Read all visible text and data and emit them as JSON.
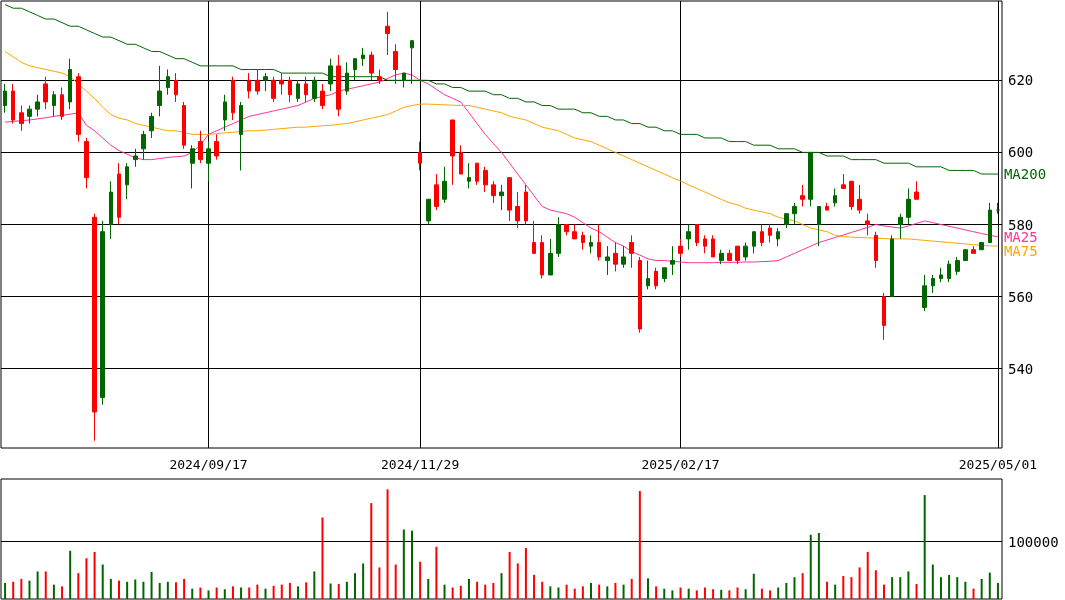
{
  "chart_data": [
    {
      "type": "candlestick",
      "categories": [
        null,
        null,
        null,
        null,
        null,
        null,
        null,
        null,
        null,
        null,
        null,
        null,
        null,
        null,
        null,
        null,
        null,
        null,
        null,
        null,
        null,
        null,
        null,
        null,
        null,
        "2024/09/17",
        null,
        null,
        null,
        null,
        null,
        null,
        null,
        null,
        null,
        null,
        null,
        null,
        null,
        null,
        null,
        null,
        null,
        null,
        null,
        null,
        null,
        null,
        null,
        null,
        null,
        "2024/11/29",
        null,
        null,
        null,
        null,
        null,
        null,
        null,
        null,
        null,
        null,
        null,
        null,
        null,
        null,
        null,
        null,
        null,
        null,
        null,
        null,
        null,
        null,
        null,
        null,
        null,
        null,
        null,
        null,
        null,
        null,
        null,
        "2025/02/17",
        null,
        null,
        null,
        null,
        null,
        null,
        null,
        null,
        null,
        null,
        null,
        null,
        null,
        null,
        null,
        null,
        null,
        null,
        null,
        null,
        null,
        null,
        null,
        null,
        null,
        null,
        null,
        null,
        null,
        null,
        null,
        null,
        null,
        null,
        null,
        null,
        null,
        null,
        "2025/05/01"
      ],
      "ohlc": [
        [
          613,
          619,
          611,
          617
        ],
        [
          617,
          619,
          608,
          609
        ],
        [
          611,
          613,
          606,
          608
        ],
        [
          610,
          613,
          608,
          612
        ],
        [
          612,
          616,
          610,
          614
        ],
        [
          619,
          621,
          612,
          614
        ],
        [
          613,
          617,
          610,
          616
        ],
        [
          616,
          618,
          609,
          610
        ],
        [
          614,
          626,
          612,
          623
        ],
        [
          621,
          622,
          603,
          605
        ],
        [
          603,
          604,
          590,
          593
        ],
        [
          582,
          583,
          520,
          528
        ],
        [
          532,
          581,
          530,
          578
        ],
        [
          580,
          592,
          576,
          589
        ],
        [
          594,
          597,
          580,
          582
        ],
        [
          591,
          597,
          587,
          596
        ],
        [
          598,
          601,
          596,
          599
        ],
        [
          601,
          606,
          598,
          605
        ],
        [
          606,
          611,
          604,
          610
        ],
        [
          613,
          624,
          610,
          617
        ],
        [
          618,
          623,
          616,
          621
        ],
        [
          620,
          622,
          614,
          616
        ],
        [
          613,
          614,
          601,
          602
        ],
        [
          597,
          602,
          590,
          601
        ],
        [
          603,
          606,
          597,
          598
        ],
        [
          597,
          603,
          592,
          601
        ],
        [
          603,
          605,
          598,
          599
        ],
        [
          609,
          616,
          606,
          614
        ],
        [
          620,
          621,
          609,
          611
        ],
        [
          605,
          614,
          595,
          613
        ],
        [
          620,
          622,
          615,
          617
        ],
        [
          620,
          623,
          616,
          617
        ],
        [
          620,
          622,
          617,
          621
        ],
        [
          620,
          621,
          614,
          615
        ],
        [
          620,
          622,
          616,
          619
        ],
        [
          620,
          621,
          614,
          616
        ],
        [
          615,
          620,
          614,
          619
        ],
        [
          619,
          621,
          614,
          616
        ],
        [
          615,
          621,
          614,
          620
        ],
        [
          617,
          619,
          612,
          613
        ],
        [
          619,
          626,
          617,
          624
        ],
        [
          624,
          627,
          610,
          612
        ],
        [
          617,
          625,
          616,
          622
        ],
        [
          623,
          626,
          620,
          626
        ],
        [
          626,
          629,
          624,
          627
        ],
        [
          627,
          628,
          620,
          622
        ],
        [
          621,
          623,
          619,
          620
        ],
        [
          635,
          639,
          627,
          633
        ],
        [
          628,
          630,
          619,
          623
        ],
        [
          620,
          622,
          618,
          622
        ],
        [
          629,
          631,
          619,
          631
        ],
        [
          600,
          603,
          595,
          597
        ],
        [
          581,
          587,
          580,
          587
        ],
        [
          591,
          594,
          584,
          585
        ],
        [
          587,
          596,
          586,
          592
        ],
        [
          609,
          609,
          591,
          599
        ],
        [
          600,
          602,
          594,
          594
        ],
        [
          592,
          597,
          590,
          593
        ],
        [
          597,
          597,
          591,
          592
        ],
        [
          595,
          596,
          589,
          591
        ],
        [
          591,
          592,
          586,
          588
        ],
        [
          588,
          591,
          584,
          589
        ],
        [
          593,
          593,
          581,
          584
        ],
        [
          585,
          589,
          579,
          581
        ],
        [
          589,
          591,
          580,
          581
        ],
        [
          575,
          581,
          572,
          572
        ],
        [
          575,
          577,
          565,
          566
        ],
        [
          566,
          576,
          566,
          572
        ],
        [
          572,
          582,
          571,
          580
        ],
        [
          580,
          580,
          577,
          578
        ],
        [
          578,
          580,
          576,
          576
        ],
        [
          577,
          578,
          573,
          575
        ],
        [
          574,
          577,
          572,
          575
        ],
        [
          575,
          580,
          570,
          571
        ],
        [
          570,
          574,
          566,
          571
        ],
        [
          572,
          575,
          567,
          569
        ],
        [
          569,
          574,
          568,
          571
        ],
        [
          575,
          577,
          568,
          572
        ],
        [
          570,
          571,
          550,
          551
        ],
        [
          563,
          570,
          562,
          565
        ],
        [
          567,
          568,
          562,
          563
        ],
        [
          565,
          568,
          564,
          568
        ],
        [
          569,
          574,
          566,
          570
        ],
        [
          574,
          576,
          571,
          572
        ],
        [
          576,
          580,
          573,
          578
        ],
        [
          580,
          580,
          574,
          575
        ],
        [
          576,
          577,
          572,
          574
        ],
        [
          576,
          577,
          571,
          571
        ],
        [
          570,
          573,
          569,
          572
        ],
        [
          572,
          573,
          570,
          570
        ],
        [
          574,
          574,
          569,
          570
        ],
        [
          571,
          575,
          570,
          574
        ],
        [
          574,
          578,
          572,
          578
        ],
        [
          578,
          580,
          574,
          575
        ],
        [
          579,
          580,
          575,
          577
        ],
        [
          576,
          579,
          574,
          578
        ],
        [
          580,
          583,
          579,
          583
        ],
        [
          583,
          586,
          580,
          585
        ],
        [
          588,
          591,
          585,
          587
        ],
        [
          587,
          600,
          585,
          600
        ],
        [
          580,
          585,
          574,
          585
        ],
        [
          585,
          586,
          584,
          584
        ],
        [
          586,
          590,
          585,
          588
        ],
        [
          591,
          594,
          590,
          590
        ],
        [
          592,
          592,
          584,
          585
        ],
        [
          587,
          591,
          583,
          584
        ],
        [
          581,
          583,
          577,
          580
        ],
        [
          577,
          578,
          568,
          570
        ],
        [
          560,
          561,
          548,
          552
        ],
        [
          560,
          577,
          560,
          576
        ],
        [
          580,
          583,
          576,
          582
        ],
        [
          582,
          590,
          580,
          587
        ],
        [
          589,
          592,
          587,
          587
        ],
        [
          557,
          566,
          556,
          563
        ],
        [
          563,
          566,
          561,
          565
        ],
        [
          565,
          568,
          564,
          566
        ],
        [
          565,
          570,
          564,
          569
        ],
        [
          567,
          571,
          566,
          570
        ],
        [
          570,
          573,
          570,
          573
        ],
        [
          573,
          574,
          572,
          572
        ],
        [
          573,
          575,
          573,
          575
        ],
        [
          575,
          586,
          575,
          584
        ],
        [
          584,
          586,
          583,
          584
        ]
      ],
      "colors": [
        "#006600",
        "#ff0000",
        "#ff0000",
        "#006600",
        "#006600",
        "#ff0000",
        "#006600",
        "#ff0000",
        "#006600",
        "#ff0000",
        "#ff0000",
        "#ff0000",
        "#006600",
        "#006600",
        "#ff0000",
        "#006600",
        "#006600",
        "#006600",
        "#006600",
        "#006600",
        "#006600",
        "#ff0000",
        "#ff0000",
        "#006600",
        "#ff0000",
        "#006600",
        "#ff0000",
        "#006600",
        "#ff0000",
        "#006600",
        "#ff0000",
        "#ff0000",
        "#006600",
        "#ff0000",
        "#ff0000",
        "#ff0000",
        "#006600",
        "#ff0000",
        "#006600",
        "#ff0000",
        "#006600",
        "#ff0000",
        "#006600",
        "#006600",
        "#006600",
        "#ff0000",
        "#ff0000",
        "#ff0000",
        "#ff0000",
        "#006600",
        "#006600",
        "#ff0000",
        "#006600",
        "#ff0000",
        "#006600",
        "#ff0000",
        "#ff0000",
        "#006600",
        "#ff0000",
        "#ff0000",
        "#ff0000",
        "#006600",
        "#ff0000",
        "#ff0000",
        "#ff0000",
        "#ff0000",
        "#ff0000",
        "#006600",
        "#006600",
        "#ff0000",
        "#ff0000",
        "#ff0000",
        "#006600",
        "#ff0000",
        "#006600",
        "#ff0000",
        "#006600",
        "#ff0000",
        "#ff0000",
        "#006600",
        "#ff0000",
        "#006600",
        "#006600",
        "#ff0000",
        "#006600",
        "#ff0000",
        "#ff0000",
        "#ff0000",
        "#006600",
        "#ff0000",
        "#ff0000",
        "#006600",
        "#006600",
        "#ff0000",
        "#ff0000",
        "#006600",
        "#006600",
        "#006600",
        "#ff0000",
        "#006600",
        "#006600",
        "#ff0000",
        "#006600",
        "#ff0000",
        "#ff0000",
        "#ff0000",
        "#ff0000",
        "#ff0000",
        "#ff0000",
        "#006600",
        "#006600",
        "#006600",
        "#ff0000",
        "#006600",
        "#006600",
        "#006600",
        "#006600",
        "#006600",
        "#006600",
        "#ff0000",
        "#006600",
        "#006600",
        "#006600"
      ],
      "series": [
        {
          "name": "MA25",
          "type": "line",
          "color": "#ff3399",
          "values": [
            608.4,
            608.6,
            608.8,
            609,
            609.3,
            609.6,
            610,
            610.3,
            610.6,
            611,
            607.5,
            606,
            604,
            602,
            600.5,
            599.5,
            598.5,
            598,
            598,
            598.3,
            598.6,
            598.8,
            599,
            600,
            602,
            605,
            606,
            607,
            608,
            609,
            610,
            610.5,
            611,
            611.5,
            612,
            612.5,
            613,
            614,
            615,
            615.5,
            616,
            617,
            617.5,
            618,
            618.5,
            619,
            619.5,
            620.5,
            621.5,
            622,
            621.5,
            620,
            619,
            617.5,
            616,
            615,
            614,
            611,
            608,
            605,
            602.5,
            600,
            597,
            594,
            591,
            588,
            585,
            584,
            583.5,
            583,
            582,
            580.5,
            579,
            578,
            576.5,
            575,
            574,
            572.5,
            571.5,
            570.5,
            570,
            570,
            569.8,
            569.6,
            569.4,
            569.4,
            569.4,
            569.4,
            569.5,
            569.5,
            569.5,
            569.6,
            569.6,
            569.7,
            569.8,
            570,
            571,
            572,
            573,
            574,
            575,
            575.7,
            576.4,
            577.1,
            577.8,
            578.5,
            579.2,
            580,
            579.6,
            579.3,
            579,
            579.6,
            580.3,
            581,
            580.5,
            580,
            579.5,
            579,
            578.5,
            578,
            577.5,
            577,
            576.6
          ]
        },
        {
          "name": "MA75",
          "type": "line",
          "color": "#ffa500",
          "values": [
            628,
            626.5,
            625,
            624,
            623.5,
            623,
            622.5,
            622,
            621,
            619,
            617,
            615,
            612.5,
            610.5,
            609.5,
            609,
            608,
            607.5,
            607,
            606.5,
            606,
            606,
            605.5,
            605,
            605,
            605,
            605.2,
            605.4,
            605.6,
            605.8,
            606,
            606,
            606.2,
            606.4,
            606.6,
            606.8,
            607,
            607,
            607.2,
            607.4,
            607.5,
            607.8,
            608,
            608.5,
            609,
            609.5,
            610,
            610.5,
            611.5,
            612.5,
            613,
            613.4,
            613.4,
            613.3,
            613.2,
            613.1,
            613,
            613,
            612.5,
            612,
            611.5,
            611,
            610,
            609.5,
            609,
            608,
            607,
            606.5,
            606,
            605,
            604,
            603.5,
            603,
            602,
            601,
            600,
            599,
            598,
            597,
            596,
            595,
            594,
            593,
            592,
            591,
            590,
            589,
            588,
            587,
            586,
            585.5,
            584.5,
            584,
            583.5,
            583,
            582,
            581.5,
            581,
            580,
            579,
            578.5,
            578,
            577,
            576.6,
            576.5,
            576.4,
            576.3,
            576.2,
            576.1,
            576,
            576,
            576,
            575.8,
            575.6,
            575.4,
            575.2,
            575,
            574.8,
            574.6,
            574.4,
            574.2,
            574.1,
            574
          ]
        },
        {
          "name": "MA200",
          "type": "line",
          "color": "#006600",
          "values": [
            641,
            640,
            640,
            639,
            638,
            637,
            637,
            636,
            635,
            635,
            634,
            633,
            632,
            632,
            631,
            630,
            630,
            629,
            628,
            628,
            627,
            626,
            626,
            625,
            624,
            624,
            624,
            624,
            624,
            623,
            623,
            623,
            623,
            623,
            622,
            622,
            622,
            622,
            622,
            622,
            621,
            621,
            621,
            621,
            621,
            621,
            621,
            620,
            620,
            620,
            620,
            620,
            620,
            619,
            619,
            618,
            618,
            617,
            617,
            617,
            616,
            616,
            615,
            615,
            614,
            614,
            613,
            613,
            612,
            612,
            612,
            611,
            611,
            610,
            610,
            609,
            609,
            608,
            608,
            607,
            607,
            606,
            606,
            605,
            605,
            605,
            604,
            604,
            604,
            603,
            603,
            603,
            602,
            602,
            602,
            601,
            601,
            601,
            600,
            600,
            600,
            599,
            599,
            599,
            598,
            598,
            598,
            598,
            597,
            597,
            597,
            597,
            596,
            596,
            596,
            596,
            595,
            595,
            595,
            595,
            594,
            594,
            594
          ]
        }
      ],
      "ylim": [
        518,
        642
      ],
      "yticks": [
        540,
        560,
        580,
        600,
        620
      ],
      "grid": true,
      "marker": "none",
      "line_style": "solid"
    },
    {
      "type": "bar",
      "categories": [
        null,
        null,
        null,
        null,
        null,
        null,
        null,
        null,
        null,
        null,
        null,
        null,
        null,
        null,
        null,
        null,
        null,
        null,
        null,
        null,
        null,
        null,
        null,
        null,
        null,
        null,
        null,
        null,
        null,
        null,
        null,
        null,
        null,
        null,
        null,
        null,
        null,
        null,
        null,
        null,
        null,
        null,
        null,
        null,
        null,
        null,
        null,
        null,
        null,
        null,
        null,
        null,
        null,
        null,
        null,
        null,
        null,
        null,
        null,
        null,
        null,
        null,
        null,
        null,
        null,
        null,
        null,
        null,
        null,
        null,
        null,
        null,
        null,
        null,
        null,
        null,
        null,
        null,
        null,
        null,
        null,
        null,
        null,
        null,
        null,
        null,
        null,
        null,
        null,
        null,
        null,
        null,
        null,
        null,
        null,
        null,
        null,
        null,
        null,
        null,
        null,
        null,
        null,
        null,
        null,
        null,
        null,
        null,
        null,
        null,
        null,
        null,
        null,
        null,
        null,
        null,
        null,
        null,
        null,
        null,
        null,
        null,
        null
      ],
      "values": [
        28000,
        30000,
        35000,
        32000,
        48000,
        48000,
        25000,
        22000,
        84000,
        45000,
        71000,
        82000,
        60000,
        35000,
        32000,
        30000,
        34000,
        30000,
        47000,
        28000,
        30000,
        29000,
        35000,
        18000,
        20000,
        15000,
        20000,
        17000,
        22000,
        20000,
        20000,
        25000,
        18000,
        23000,
        25000,
        28000,
        22000,
        29000,
        48000,
        142000,
        27000,
        26000,
        30000,
        45000,
        62000,
        167000,
        55000,
        191000,
        60000,
        121000,
        119000,
        65000,
        35000,
        91000,
        25000,
        20000,
        23000,
        35000,
        30000,
        25000,
        28000,
        45000,
        82000,
        62000,
        89000,
        42000,
        30000,
        22000,
        20000,
        25000,
        18000,
        22000,
        28000,
        25000,
        22000,
        28000,
        25000,
        35000,
        188000,
        36000,
        22000,
        18000,
        15000,
        20000,
        18000,
        15000,
        20000,
        17000,
        16000,
        15000,
        20000,
        17000,
        44000,
        18000,
        15000,
        20000,
        28000,
        38000,
        45000,
        112000,
        115000,
        30000,
        25000,
        40000,
        38000,
        55000,
        82000,
        50000,
        25000,
        38000,
        38000,
        48000,
        26000,
        181000,
        60000,
        38000,
        42000,
        38000,
        30000,
        18000,
        35000,
        46000,
        28000
      ],
      "colors": [
        "#006600",
        "#ff0000",
        "#ff0000",
        "#006600",
        "#006600",
        "#ff0000",
        "#006600",
        "#ff0000",
        "#006600",
        "#ff0000",
        "#ff0000",
        "#ff0000",
        "#006600",
        "#006600",
        "#ff0000",
        "#006600",
        "#006600",
        "#006600",
        "#006600",
        "#006600",
        "#006600",
        "#ff0000",
        "#ff0000",
        "#006600",
        "#ff0000",
        "#006600",
        "#ff0000",
        "#006600",
        "#ff0000",
        "#006600",
        "#ff0000",
        "#ff0000",
        "#006600",
        "#ff0000",
        "#ff0000",
        "#ff0000",
        "#006600",
        "#ff0000",
        "#006600",
        "#ff0000",
        "#006600",
        "#ff0000",
        "#006600",
        "#006600",
        "#006600",
        "#ff0000",
        "#ff0000",
        "#ff0000",
        "#ff0000",
        "#006600",
        "#006600",
        "#ff0000",
        "#006600",
        "#ff0000",
        "#006600",
        "#ff0000",
        "#ff0000",
        "#006600",
        "#ff0000",
        "#ff0000",
        "#ff0000",
        "#006600",
        "#ff0000",
        "#ff0000",
        "#ff0000",
        "#ff0000",
        "#ff0000",
        "#006600",
        "#006600",
        "#ff0000",
        "#ff0000",
        "#ff0000",
        "#006600",
        "#ff0000",
        "#006600",
        "#ff0000",
        "#006600",
        "#ff0000",
        "#ff0000",
        "#006600",
        "#ff0000",
        "#006600",
        "#006600",
        "#ff0000",
        "#006600",
        "#ff0000",
        "#ff0000",
        "#ff0000",
        "#006600",
        "#ff0000",
        "#ff0000",
        "#006600",
        "#006600",
        "#ff0000",
        "#ff0000",
        "#006600",
        "#006600",
        "#006600",
        "#ff0000",
        "#006600",
        "#006600",
        "#ff0000",
        "#006600",
        "#ff0000",
        "#ff0000",
        "#ff0000",
        "#ff0000",
        "#ff0000",
        "#ff0000",
        "#006600",
        "#006600",
        "#006600",
        "#ff0000",
        "#006600",
        "#006600",
        "#006600",
        "#006600",
        "#006600",
        "#006600",
        "#ff0000",
        "#006600",
        "#006600",
        "#006600"
      ],
      "ylim": [
        0,
        209000
      ],
      "yticks": [
        100000
      ],
      "grid": "y",
      "tick_labels": "y"
    }
  ]
}
